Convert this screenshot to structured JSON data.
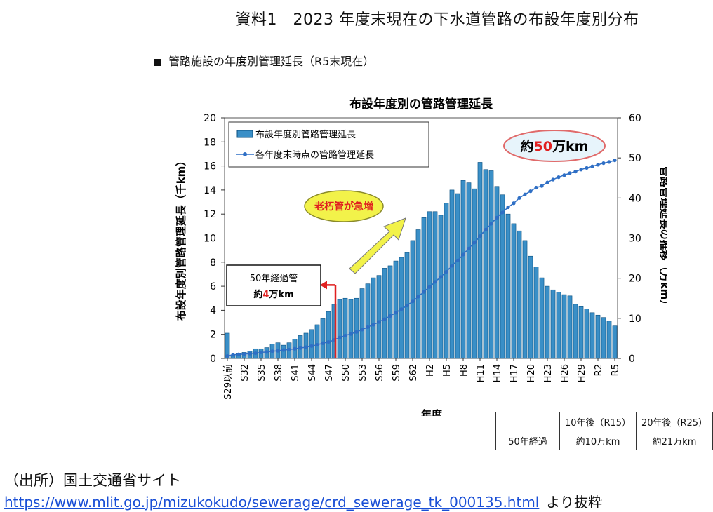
{
  "page_title": "資料1　2023 年度末現在の下水道管路の布設年度別分布",
  "section_label": "管路施設の年度別管理延長（R5末現在）",
  "source_label": "（出所）国土交通省サイト",
  "source_url": "https://www.mlit.go.jp/mizukokudo/sewerage/crd_sewerage_tk_000135.html",
  "source_tail": "より抜粋",
  "colors": {
    "bar": "#3a8fc7",
    "bar_stroke": "#0b4f7f",
    "line": "#2f6fc5",
    "accent": "#e02020",
    "arrow": "#f2f24a"
  },
  "chart_data": {
    "type": "bar",
    "title": "布設年度別の管路管理延長",
    "xlabel": "年度",
    "ylabel": "布設年度別管路管理延長（千km）",
    "y2label": "管路管理延長の推移（万km）",
    "ylim": [
      0,
      20
    ],
    "y2lim": [
      0,
      60
    ],
    "yticks": [
      0,
      2,
      4,
      6,
      8,
      10,
      12,
      14,
      16,
      18,
      20
    ],
    "y2ticks": [
      0,
      10,
      20,
      30,
      40,
      50,
      60
    ],
    "legend": {
      "position": "top-left",
      "bar_label": "布設年度別管路管理延長",
      "line_label": "各年度末時点の管路管理延長"
    },
    "tick_labels": [
      "S29以前",
      "S32",
      "S35",
      "S38",
      "S41",
      "S44",
      "S47",
      "S50",
      "S53",
      "S56",
      "S59",
      "S62",
      "H2",
      "H5",
      "H8",
      "H11",
      "H14",
      "H17",
      "H20",
      "H23",
      "H26",
      "H29",
      "R2",
      "R5"
    ],
    "tick_every": 3,
    "categories": [
      "S29以前",
      "S30",
      "S31",
      "S32",
      "S33",
      "S34",
      "S35",
      "S36",
      "S37",
      "S38",
      "S39",
      "S40",
      "S41",
      "S42",
      "S43",
      "S44",
      "S45",
      "S46",
      "S47",
      "S48",
      "S49",
      "S50",
      "S51",
      "S52",
      "S53",
      "S54",
      "S55",
      "S56",
      "S57",
      "S58",
      "S59",
      "S60",
      "S61",
      "S62",
      "S63",
      "H1",
      "H2",
      "H3",
      "H4",
      "H5",
      "H6",
      "H7",
      "H8",
      "H9",
      "H10",
      "H11",
      "H12",
      "H13",
      "H14",
      "H15",
      "H16",
      "H17",
      "H18",
      "H19",
      "H20",
      "H21",
      "H22",
      "H23",
      "H24",
      "H25",
      "H26",
      "H27",
      "H28",
      "H29",
      "H30",
      "R1",
      "R2",
      "R3",
      "R4",
      "R5"
    ],
    "series": [
      {
        "name": "布設年度別管路管理延長",
        "axis": "left",
        "kind": "bar",
        "values": [
          2.1,
          0.3,
          0.4,
          0.5,
          0.6,
          0.8,
          0.8,
          0.9,
          1.2,
          1.3,
          1.1,
          1.3,
          1.6,
          1.9,
          2.1,
          2.4,
          2.8,
          3.3,
          3.9,
          4.5,
          4.9,
          5.0,
          4.9,
          5.0,
          5.8,
          6.2,
          6.7,
          6.9,
          7.5,
          7.7,
          8.1,
          8.4,
          8.8,
          9.8,
          10.7,
          11.7,
          12.2,
          12.2,
          11.9,
          12.9,
          14.0,
          13.7,
          14.8,
          14.6,
          14.1,
          16.3,
          15.7,
          15.6,
          14.3,
          13.6,
          12.0,
          11.2,
          10.6,
          9.8,
          8.5,
          7.6,
          6.7,
          6.0,
          5.7,
          5.5,
          5.3,
          5.2,
          4.5,
          4.3,
          4.1,
          3.8,
          3.6,
          3.4,
          3.1,
          2.7
        ]
      },
      {
        "name": "各年度末時点の管路管理延長",
        "axis": "right",
        "kind": "line",
        "values": [
          0.6,
          0.9,
          1.0,
          1.1,
          1.2,
          1.3,
          1.5,
          1.6,
          1.8,
          1.9,
          2.1,
          2.2,
          2.4,
          2.6,
          2.8,
          3.1,
          3.4,
          3.8,
          4.1,
          4.6,
          5.2,
          5.7,
          6.1,
          6.6,
          7.2,
          7.8,
          8.4,
          9.1,
          9.8,
          10.6,
          11.4,
          12.3,
          13.2,
          14.2,
          15.4,
          16.6,
          17.8,
          19.1,
          20.3,
          21.6,
          23.1,
          24.4,
          25.9,
          27.4,
          28.9,
          30.5,
          32.1,
          33.6,
          35.1,
          36.4,
          37.7,
          38.7,
          40.0,
          40.9,
          41.7,
          42.6,
          43.0,
          43.9,
          44.6,
          45.2,
          45.7,
          46.2,
          46.6,
          47.1,
          47.5,
          47.9,
          48.3,
          48.7,
          49.0,
          49.4
        ]
      }
    ],
    "annotations": {
      "total_bubble": "約50万km",
      "total_bubble_parts": [
        "約",
        "50",
        "万km"
      ],
      "aging_bubble": "老朽管が急増",
      "fifty_year_box": "50年経過管",
      "fifty_year_value": "約4万km",
      "fifty_year_value_parts": [
        "約",
        "4",
        "万km"
      ],
      "fifty_year_marker_category": "S48"
    },
    "summary_table": {
      "headers": [
        "",
        "10年後（R15）",
        "20年後（R25）"
      ],
      "row_label": "50年経過",
      "row_values": [
        "約10万km",
        "約21万km"
      ]
    }
  }
}
